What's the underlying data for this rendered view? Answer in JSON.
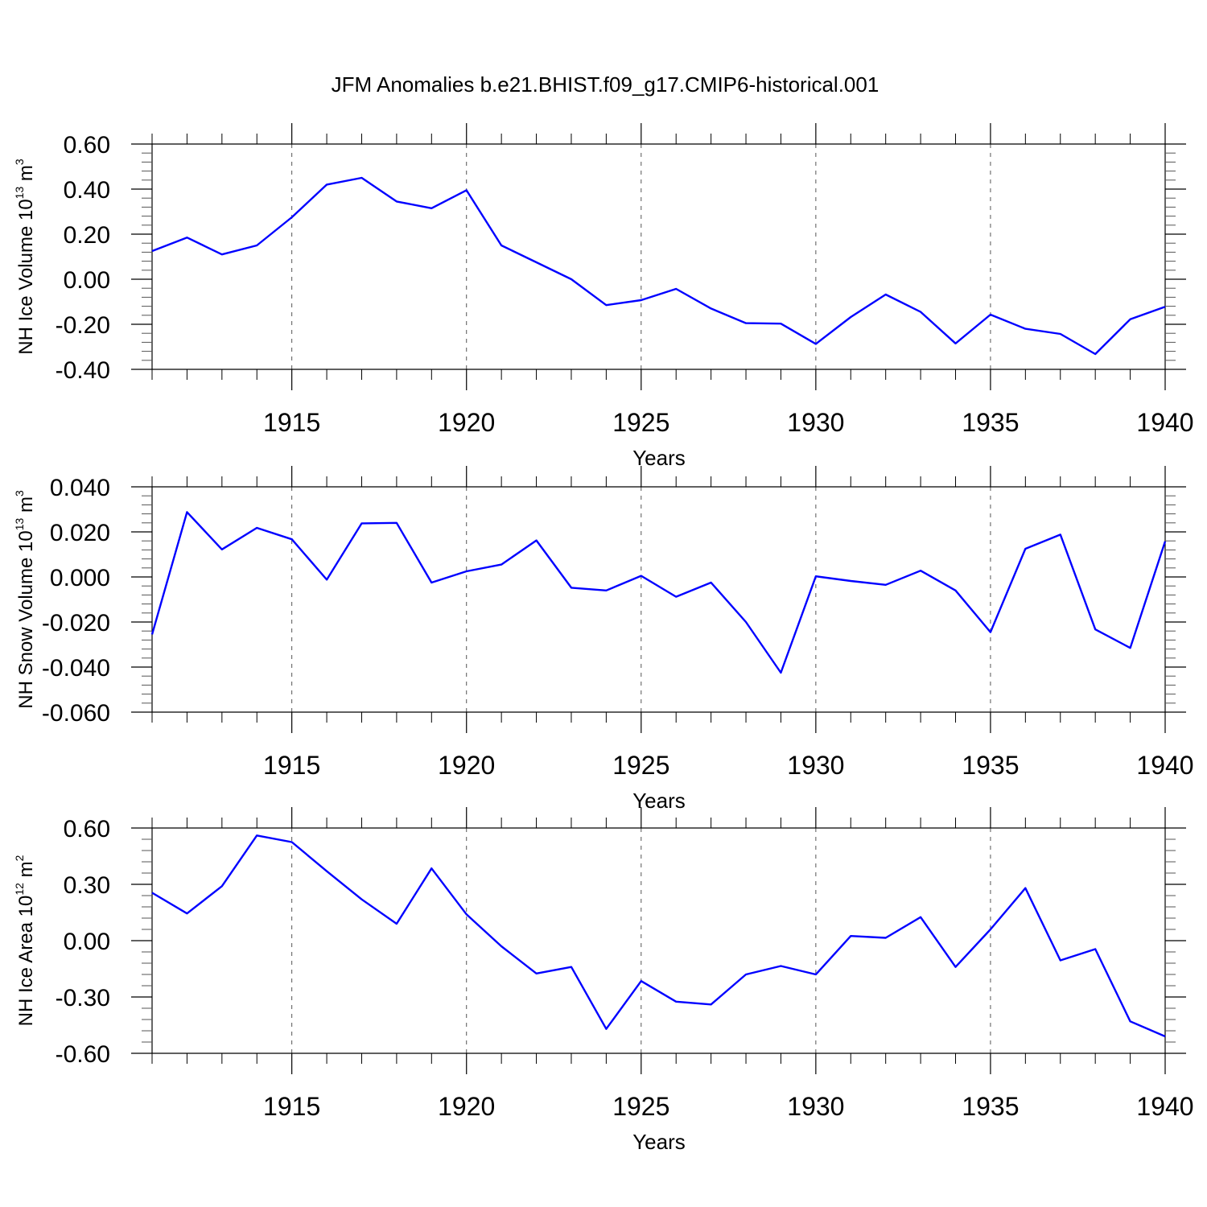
{
  "title": "JFM Anomalies b.e21.BHIST.f09_g17.CMIP6-historical.001",
  "colors": {
    "line": "#0000ff",
    "axis": "#000000",
    "grid": "#555555"
  },
  "chart_data": [
    {
      "type": "line",
      "ylabel_main": "NH Ice Volume 10",
      "ylabel_exp": "13",
      "ylabel_unit": "m",
      "ylabel_unit_exp": "3",
      "xlabel": "Years",
      "xlim": [
        1911,
        1940
      ],
      "ylim": [
        -0.4,
        0.6
      ],
      "yticks": [
        "-0.40",
        "-0.20",
        "0.00",
        "0.20",
        "0.40",
        "0.60"
      ],
      "ytick_values": [
        -0.4,
        -0.2,
        0.0,
        0.2,
        0.4,
        0.6
      ],
      "xticks": [
        "1915",
        "1920",
        "1925",
        "1930",
        "1935",
        "1940"
      ],
      "xtick_values": [
        1915,
        1920,
        1925,
        1930,
        1935,
        1940
      ],
      "grid": "vertical dashed at major x ticks",
      "x": [
        1911,
        1912,
        1913,
        1914,
        1915,
        1916,
        1917,
        1918,
        1919,
        1920,
        1921,
        1922,
        1923,
        1924,
        1925,
        1926,
        1927,
        1928,
        1929,
        1930,
        1931,
        1932,
        1933,
        1934,
        1935,
        1936,
        1937,
        1938,
        1939,
        1940
      ],
      "values": [
        0.125,
        0.185,
        0.11,
        0.15,
        0.275,
        0.42,
        0.45,
        0.345,
        0.315,
        0.395,
        0.15,
        0.075,
        0.0,
        -0.115,
        -0.093,
        -0.043,
        -0.13,
        -0.195,
        -0.197,
        -0.287,
        -0.168,
        -0.068,
        -0.145,
        -0.285,
        -0.157,
        -0.22,
        -0.243,
        -0.332,
        -0.178,
        -0.122
      ]
    },
    {
      "type": "line",
      "ylabel_main": "NH Snow Volume 10",
      "ylabel_exp": "13",
      "ylabel_unit": "m",
      "ylabel_unit_exp": "3",
      "xlabel": "Years",
      "xlim": [
        1911,
        1940
      ],
      "ylim": [
        -0.06,
        0.04
      ],
      "yticks": [
        "-0.060",
        "-0.040",
        "-0.020",
        "0.000",
        "0.020",
        "0.040"
      ],
      "ytick_values": [
        -0.06,
        -0.04,
        -0.02,
        0.0,
        0.02,
        0.04
      ],
      "xticks": [
        "1915",
        "1920",
        "1925",
        "1930",
        "1935",
        "1940"
      ],
      "xtick_values": [
        1915,
        1920,
        1925,
        1930,
        1935,
        1940
      ],
      "grid": "vertical dashed at major x ticks",
      "x": [
        1911,
        1912,
        1913,
        1914,
        1915,
        1916,
        1917,
        1918,
        1919,
        1920,
        1921,
        1922,
        1923,
        1924,
        1925,
        1926,
        1927,
        1928,
        1929,
        1930,
        1931,
        1932,
        1933,
        1934,
        1935,
        1936,
        1937,
        1938,
        1939,
        1940
      ],
      "values": [
        -0.0255,
        0.0288,
        0.0122,
        0.0218,
        0.0167,
        -0.0012,
        0.0238,
        0.024,
        -0.0025,
        0.0025,
        0.0055,
        0.0162,
        -0.0048,
        -0.006,
        0.0005,
        -0.0088,
        -0.0025,
        -0.02,
        -0.0425,
        0.0003,
        -0.0018,
        -0.0035,
        0.0028,
        -0.006,
        -0.0245,
        0.0125,
        0.0188,
        -0.0233,
        -0.0315,
        0.0158
      ]
    },
    {
      "type": "line",
      "ylabel_main": "NH Ice Area 10",
      "ylabel_exp": "12",
      "ylabel_unit": "m",
      "ylabel_unit_exp": "2",
      "xlabel": "Years",
      "xlim": [
        1911,
        1940
      ],
      "ylim": [
        -0.6,
        0.6
      ],
      "yticks": [
        "-0.60",
        "-0.30",
        "0.00",
        "0.30",
        "0.60"
      ],
      "ytick_values": [
        -0.6,
        -0.3,
        0.0,
        0.3,
        0.6
      ],
      "xticks": [
        "1915",
        "1920",
        "1925",
        "1930",
        "1935",
        "1940"
      ],
      "xtick_values": [
        1915,
        1920,
        1925,
        1930,
        1935,
        1940
      ],
      "grid": "vertical dashed at major x ticks",
      "x": [
        1911,
        1912,
        1913,
        1914,
        1915,
        1916,
        1917,
        1918,
        1919,
        1920,
        1921,
        1922,
        1923,
        1924,
        1925,
        1926,
        1927,
        1928,
        1929,
        1930,
        1931,
        1932,
        1933,
        1934,
        1935,
        1936,
        1937,
        1938,
        1939,
        1940
      ],
      "values": [
        0.255,
        0.145,
        0.29,
        0.56,
        0.525,
        0.37,
        0.22,
        0.09,
        0.385,
        0.14,
        -0.03,
        -0.175,
        -0.14,
        -0.47,
        -0.215,
        -0.325,
        -0.34,
        -0.18,
        -0.135,
        -0.18,
        0.025,
        0.015,
        0.125,
        -0.14,
        0.06,
        0.28,
        -0.105,
        -0.045,
        -0.43,
        -0.51
      ]
    }
  ]
}
